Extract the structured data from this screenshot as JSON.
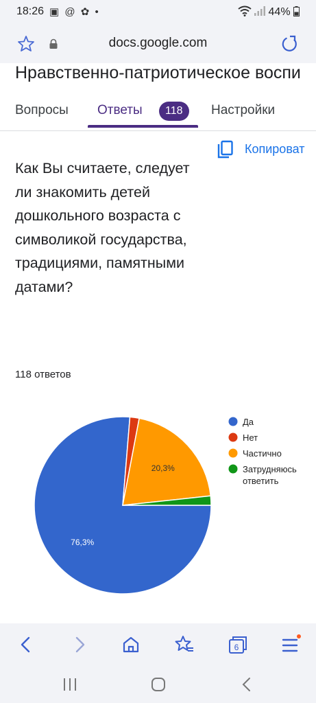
{
  "status_bar": {
    "time": "18:26",
    "notifications": "▣ @ ✿ •",
    "battery": "44%"
  },
  "browser": {
    "host": "docs.google.com"
  },
  "form": {
    "title": "Нравственно-патриотическое воспи",
    "tabs": [
      {
        "label": "Вопросы"
      },
      {
        "label": "Ответы",
        "badge": "118"
      },
      {
        "label": "Настройки"
      }
    ],
    "copy_label": "Копироват"
  },
  "question": {
    "text": "Как Вы считаете, следует ли знакомить детей дошкольного возраста с символикой государства, традициями, памятными датами?",
    "responses_count": "118 ответов"
  },
  "chart_data": {
    "type": "pie",
    "slices": [
      {
        "label": "Да",
        "value": 76.3,
        "color": "#3366cc",
        "data_label": "76,3%"
      },
      {
        "label": "Нет",
        "value": 1.7,
        "color": "#dc3912",
        "data_label": ""
      },
      {
        "label": "Частично",
        "value": 20.3,
        "color": "#ff9900",
        "data_label": "20,3%"
      },
      {
        "label": "Затрудняюсь ответить",
        "value": 1.7,
        "color": "#109618",
        "data_label": ""
      }
    ],
    "legend_position": "right"
  },
  "bottom_nav": {
    "icons": [
      "back-icon",
      "forward-icon",
      "home-icon",
      "bookmarks-icon",
      "tabs-icon",
      "menu-icon"
    ],
    "tab_count": "6"
  }
}
